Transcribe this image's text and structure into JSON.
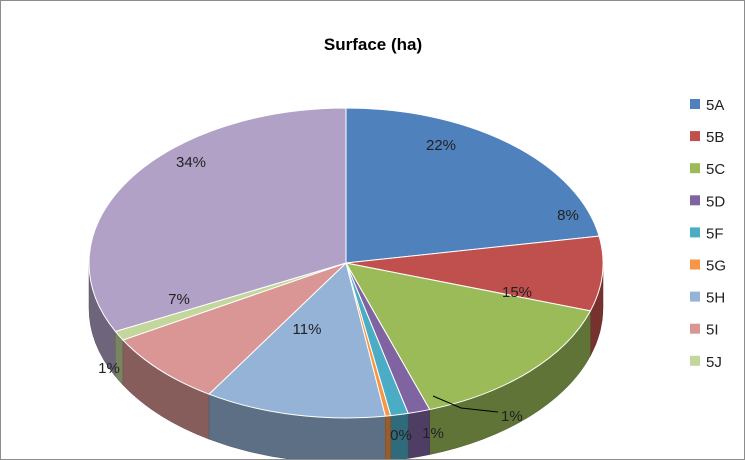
{
  "chart_data": {
    "type": "pie",
    "style": "3d",
    "title": "Surface (ha)",
    "legend_position": "right",
    "slices": [
      {
        "name": "5A",
        "value": 22,
        "label": "22%",
        "color": "#4F81BD"
      },
      {
        "name": "5B",
        "value": 8,
        "label": "8%",
        "color": "#C0504D"
      },
      {
        "name": "5C",
        "value": 15,
        "label": "15%",
        "color": "#9BBB59"
      },
      {
        "name": "5D",
        "value": 1,
        "label": "1%",
        "color": "#8064A2"
      },
      {
        "name": "5F",
        "value": 1,
        "label": "1%",
        "color": "#4BACC6"
      },
      {
        "name": "5G",
        "value": 0,
        "label": "0%",
        "color": "#F79646"
      },
      {
        "name": "5H",
        "value": 11,
        "label": "11%",
        "color": "#95B3D7"
      },
      {
        "name": "5I",
        "value": 7,
        "label": "7%",
        "color": "#D99694"
      },
      {
        "name": "5J",
        "value": 1,
        "label": "1%",
        "color": "#C3D69B"
      },
      {
        "name": "",
        "value": 34,
        "label": "34%",
        "color": "#B2A1C7"
      }
    ]
  }
}
